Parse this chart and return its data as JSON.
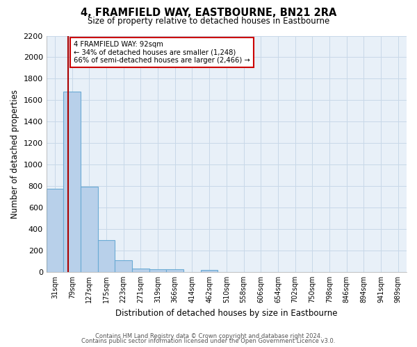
{
  "title": "4, FRAMFIELD WAY, EASTBOURNE, BN21 2RA",
  "subtitle": "Size of property relative to detached houses in Eastbourne",
  "xlabel": "Distribution of detached houses by size in Eastbourne",
  "ylabel": "Number of detached properties",
  "categories": [
    "31sqm",
    "79sqm",
    "127sqm",
    "175sqm",
    "223sqm",
    "271sqm",
    "319sqm",
    "366sqm",
    "414sqm",
    "462sqm",
    "510sqm",
    "558sqm",
    "606sqm",
    "654sqm",
    "702sqm",
    "750sqm",
    "798sqm",
    "846sqm",
    "894sqm",
    "941sqm",
    "989sqm"
  ],
  "values": [
    775,
    1680,
    795,
    295,
    110,
    35,
    25,
    25,
    0,
    20,
    0,
    0,
    0,
    0,
    0,
    0,
    0,
    0,
    0,
    0,
    0
  ],
  "bar_color": "#b8d0ea",
  "bar_edge_color": "#6aaad4",
  "grid_color": "#c8d8e8",
  "plot_bg_color": "#e8f0f8",
  "property_line_color": "#aa0000",
  "annotation_title": "4 FRAMFIELD WAY: 92sqm",
  "annotation_line1": "← 34% of detached houses are smaller (1,248)",
  "annotation_line2": "66% of semi-detached houses are larger (2,466) →",
  "annotation_box_color": "#ffffff",
  "annotation_box_edge": "#cc0000",
  "ylim": [
    0,
    2200
  ],
  "yticks": [
    0,
    200,
    400,
    600,
    800,
    1000,
    1200,
    1400,
    1600,
    1800,
    2000,
    2200
  ],
  "footer_line1": "Contains HM Land Registry data © Crown copyright and database right 2024.",
  "footer_line2": "Contains public sector information licensed under the Open Government Licence v3.0.",
  "bg_color": "#ffffff"
}
